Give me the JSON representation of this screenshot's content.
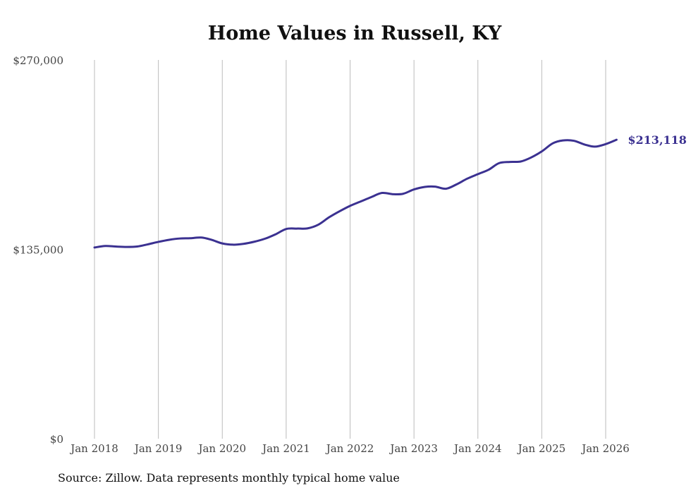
{
  "chart_data": {
    "type": "line",
    "title": "Home Values in Russell, KY",
    "xlabel": "",
    "ylabel": "",
    "ylim": [
      0,
      270000
    ],
    "y_ticks": [
      {
        "value": 0,
        "label": "$0"
      },
      {
        "value": 135000,
        "label": "$135,000"
      },
      {
        "value": 270000,
        "label": "$270,000"
      }
    ],
    "x_ticks": [
      {
        "value": 2018,
        "label": "Jan 2018"
      },
      {
        "value": 2019,
        "label": "Jan 2019"
      },
      {
        "value": 2020,
        "label": "Jan 2020"
      },
      {
        "value": 2021,
        "label": "Jan 2021"
      },
      {
        "value": 2022,
        "label": "Jan 2022"
      },
      {
        "value": 2023,
        "label": "Jan 2023"
      },
      {
        "value": 2024,
        "label": "Jan 2024"
      },
      {
        "value": 2025,
        "label": "Jan 2025"
      },
      {
        "value": 2026,
        "label": "Jan 2026"
      }
    ],
    "xlim": [
      2018,
      2026.25
    ],
    "grid": "vertical",
    "series": [
      {
        "name": "Typical home value",
        "color": "#3b3191",
        "x": [
          2018,
          2018.17,
          2018.33,
          2018.5,
          2018.67,
          2018.83,
          2019,
          2019.17,
          2019.33,
          2019.5,
          2019.67,
          2019.83,
          2020,
          2020.17,
          2020.33,
          2020.5,
          2020.67,
          2020.83,
          2021,
          2021.17,
          2021.33,
          2021.5,
          2021.67,
          2021.83,
          2022,
          2022.17,
          2022.33,
          2022.5,
          2022.67,
          2022.83,
          2023,
          2023.17,
          2023.33,
          2023.5,
          2023.67,
          2023.83,
          2024,
          2024.17,
          2024.33,
          2024.5,
          2024.67,
          2024.83,
          2025,
          2025.17,
          2025.33,
          2025.5,
          2025.67,
          2025.83,
          2026,
          2026.17
        ],
        "values": [
          136300,
          137400,
          137000,
          136700,
          137000,
          138500,
          140300,
          141800,
          142700,
          142900,
          143400,
          141800,
          139200,
          138300,
          138900,
          140400,
          142600,
          145600,
          149500,
          149800,
          149900,
          152500,
          157800,
          162000,
          166000,
          169200,
          172200,
          175200,
          174300,
          174600,
          177700,
          179500,
          179700,
          178200,
          181400,
          185300,
          188600,
          191800,
          196400,
          197300,
          197600,
          200400,
          204800,
          210500,
          212600,
          212400,
          209700,
          208200,
          210000,
          213118
        ]
      }
    ],
    "annotations": [
      {
        "label": "$213,118",
        "x": 2026.17,
        "y": 213118
      }
    ]
  },
  "source": "Source: Zillow. Data represents monthly typical home value"
}
